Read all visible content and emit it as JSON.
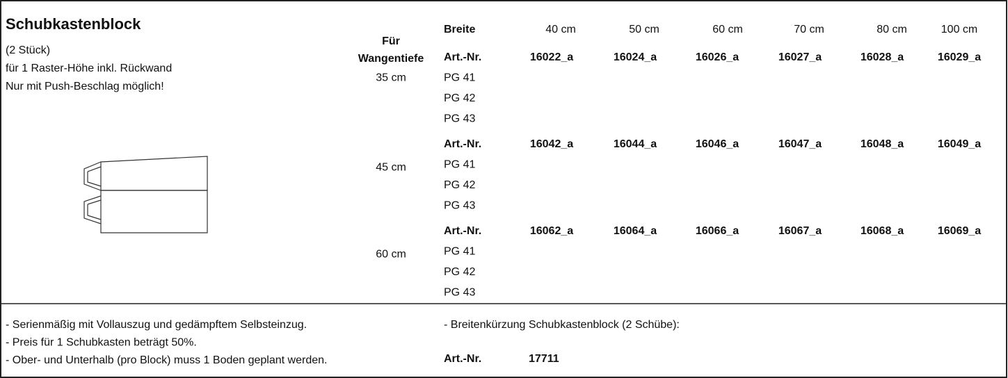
{
  "header": {
    "title": "Schubkastenblock",
    "lines": [
      "(2 Stück)",
      "für 1 Raster-Höhe inkl. Rückwand",
      "Nur mit Push-Beschlag möglich!"
    ]
  },
  "depth_header": [
    "Für",
    "Wangentiefe"
  ],
  "width_label": "Breite",
  "widths": [
    "40 cm",
    "50 cm",
    "60 cm",
    "70 cm",
    "80 cm",
    "100 cm"
  ],
  "groups": [
    {
      "depth": "35 cm",
      "label": "Art.-Nr.",
      "articles": [
        "16022_a",
        "16024_a",
        "16026_a",
        "16027_a",
        "16028_a",
        "16029_a"
      ],
      "price_groups": [
        "PG 41",
        "PG 42",
        "PG 43"
      ]
    },
    {
      "depth": "45 cm",
      "label": "Art.-Nr.",
      "articles": [
        "16042_a",
        "16044_a",
        "16046_a",
        "16047_a",
        "16048_a",
        "16049_a"
      ],
      "price_groups": [
        "PG 41",
        "PG 42",
        "PG 43"
      ]
    },
    {
      "depth": "60 cm",
      "label": "Art.-Nr.",
      "articles": [
        "16062_a",
        "16064_a",
        "16066_a",
        "16067_a",
        "16068_a",
        "16069_a"
      ],
      "price_groups": [
        "PG 41",
        "PG 42",
        "PG 43"
      ]
    }
  ],
  "notes": [
    "- Serienmäßig mit Vollauszug und gedämpftem Selbsteinzug.",
    "- Preis für 1 Schubkasten beträgt 50%.",
    "- Ober- und Unterhalb (pro Block) muss 1 Boden geplant werden."
  ],
  "extra": {
    "text": "- Breitenkürzung Schubkastenblock (2 Schübe):",
    "label": "Art.-Nr.",
    "article": "17711"
  }
}
